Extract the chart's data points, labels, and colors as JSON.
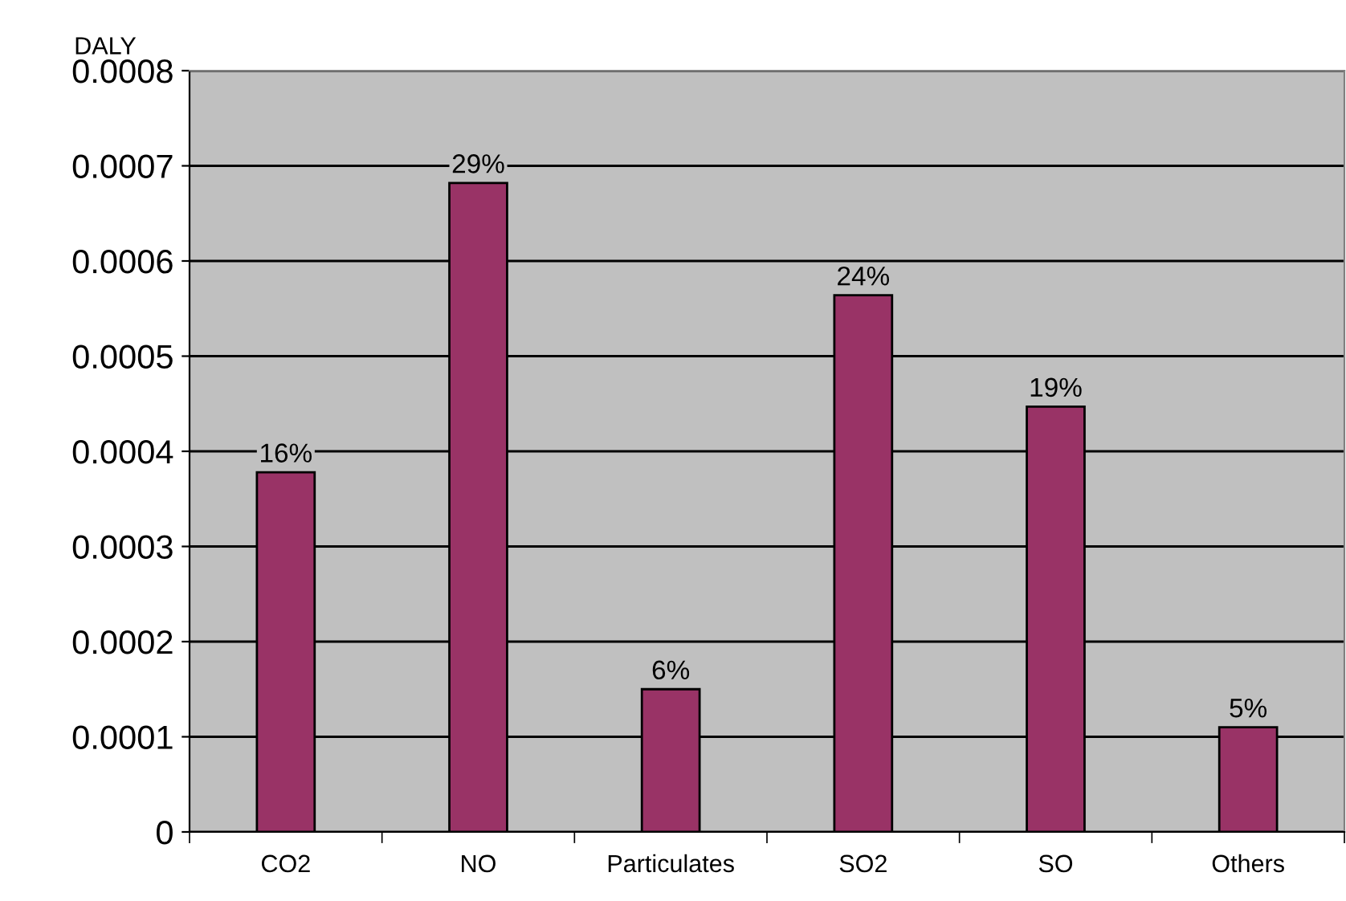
{
  "chart_data": {
    "type": "bar",
    "ylabel": "DALY",
    "categories": [
      "CO2",
      "NO",
      "Particulates",
      "SO2",
      "SO",
      "Others"
    ],
    "values": [
      0.000378,
      0.000682,
      0.00015,
      0.000564,
      0.000447,
      0.00011
    ],
    "annotations": [
      {
        "text": "16%",
        "x": "CO2",
        "y": 0.000378
      },
      {
        "text": "29%",
        "x": "NO",
        "y": 0.000682
      },
      {
        "text": "6%",
        "x": "Particulates",
        "y": 0.00015
      },
      {
        "text": "24%",
        "x": "SO2",
        "y": 0.000564
      },
      {
        "text": "19%",
        "x": "SO",
        "y": 0.000447
      },
      {
        "text": "5%",
        "x": "Others",
        "y": 0.00011
      }
    ],
    "color": "#993366",
    "ylim": [
      0,
      0.0008
    ],
    "yticks": [
      0,
      0.0001,
      0.0002,
      0.0003,
      0.0004,
      0.0005,
      0.0006,
      0.0007,
      0.0008
    ],
    "grid": "y",
    "legend": false
  }
}
